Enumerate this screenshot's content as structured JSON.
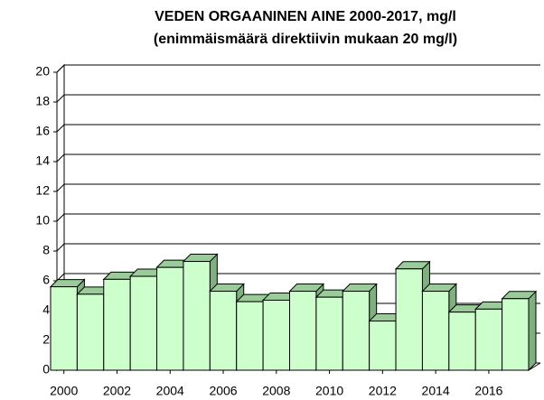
{
  "chart_data": {
    "type": "bar3d",
    "title": "VEDEN ORGAANINEN AINE 2000-2017, mg/l",
    "subtitle": "(enimmäismäärä direktiivin mukaan 20 mg/l)",
    "categories": [
      "2000",
      null,
      "2002",
      null,
      "2004",
      null,
      "2006",
      null,
      "2008",
      null,
      "2010",
      null,
      "2012",
      null,
      "2014",
      null,
      "2016",
      null
    ],
    "values": [
      5.6,
      5.1,
      6.1,
      6.3,
      6.9,
      7.3,
      5.3,
      4.6,
      4.7,
      5.3,
      4.9,
      5.3,
      3.3,
      6.8,
      5.3,
      3.9,
      4.1,
      4.8
    ],
    "color": "#ccffcc",
    "ylim": [
      0,
      20
    ],
    "yticks": [
      0,
      2,
      4,
      6,
      8,
      10,
      12,
      14,
      16,
      18,
      20
    ],
    "grid": true
  }
}
